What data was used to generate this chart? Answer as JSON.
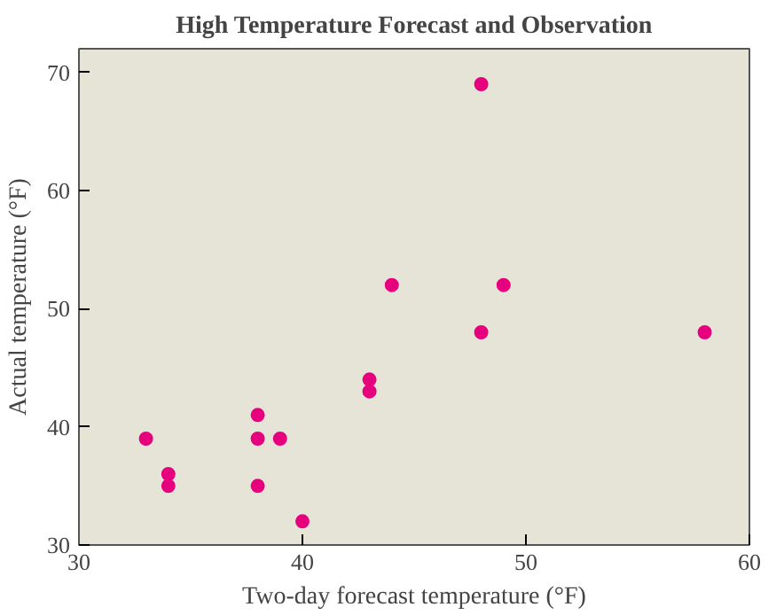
{
  "chart_data": {
    "type": "scatter",
    "title": "High Temperature Forecast and Observation",
    "xlabel": "Two-day forecast temperature (°F)",
    "ylabel": "Actual temperature (°F)",
    "x": [
      33,
      34,
      34,
      38,
      38,
      39,
      38,
      40,
      43,
      43,
      44,
      48,
      49,
      48,
      58
    ],
    "values": [
      39,
      36,
      35,
      41,
      39,
      39,
      35,
      32,
      44,
      43,
      52,
      69,
      52,
      48,
      48
    ],
    "color": "#e6007e",
    "marker": "circle",
    "xlim": [
      30,
      60
    ],
    "ylim": [
      30,
      72
    ],
    "xticks": [
      30,
      40,
      50,
      60
    ],
    "yticks": [
      30,
      40,
      50,
      60,
      70
    ],
    "grid": false
  }
}
